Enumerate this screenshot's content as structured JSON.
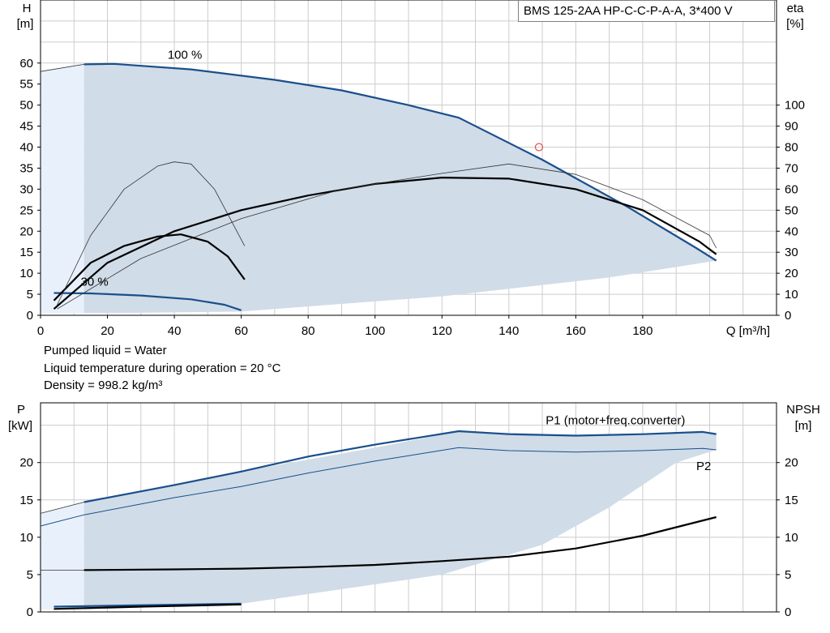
{
  "title": "BMS 125-2AA HP-C-C-P-A-A, 3*400 V",
  "info": [
    "Pumped liquid = Water",
    "Liquid temperature during operation = 20 °C",
    "Density = 998.2 kg/m³"
  ],
  "colors": {
    "area": "#d0dce8",
    "area_light": "#e8f1fb",
    "blue": "#1a4f8b",
    "black": "#000000",
    "grid": "#cccccc",
    "marker": "#e03030"
  },
  "chart_data": [
    {
      "type": "line",
      "name": "head-efficiency",
      "xlabel": "Q [m³/h]",
      "ylabel": "H\n[m]",
      "y2label": "eta\n[%]",
      "xlim": [
        0,
        220
      ],
      "ylim": [
        0,
        75
      ],
      "y2lim": [
        0,
        150
      ],
      "x_ticks": [
        0,
        20,
        40,
        60,
        80,
        100,
        120,
        140,
        160,
        180
      ],
      "y_ticks": [
        0,
        5,
        10,
        15,
        20,
        25,
        30,
        35,
        40,
        45,
        50,
        55,
        60
      ],
      "y2_ticks": [
        0,
        10,
        20,
        30,
        40,
        50,
        60,
        70,
        80,
        90,
        100
      ],
      "grid": true,
      "annotations": [
        {
          "text": "100 %",
          "x": 38,
          "y": 61
        },
        {
          "text": "30 %",
          "x": 12,
          "y": 7
        }
      ],
      "duty_point": {
        "x": 149,
        "y": 40
      },
      "operating_range": [
        [
          13,
          60
        ],
        [
          22,
          59.8
        ],
        [
          45,
          58.5
        ],
        [
          70,
          56
        ],
        [
          90,
          53.5
        ],
        [
          110,
          50
        ],
        [
          125,
          47
        ],
        [
          150,
          37
        ],
        [
          175,
          26
        ],
        [
          196,
          16
        ],
        [
          202,
          13
        ],
        [
          170,
          9
        ],
        [
          120,
          4.5
        ],
        [
          60,
          0.9
        ],
        [
          50,
          0.8
        ],
        [
          30,
          0.6
        ],
        [
          13,
          0.5
        ]
      ],
      "extension_region": [
        [
          0,
          58
        ],
        [
          13,
          60
        ],
        [
          13,
          0.5
        ],
        [
          0,
          0.5
        ]
      ],
      "series": [
        {
          "name": "H 100%",
          "axis": "left",
          "style": "blue-thick",
          "x": [
            13,
            22,
            45,
            70,
            90,
            110,
            125,
            150,
            175,
            196,
            202
          ],
          "y": [
            59.7,
            59.8,
            58.5,
            56,
            53.5,
            50,
            47,
            37,
            26,
            16,
            13
          ]
        },
        {
          "name": "H 100% ext",
          "axis": "left",
          "style": "thin",
          "x": [
            0,
            13
          ],
          "y": [
            58,
            59.7
          ]
        },
        {
          "name": "H 30%",
          "axis": "left",
          "style": "blue-thick",
          "x": [
            4,
            15,
            30,
            45,
            55,
            60
          ],
          "y": [
            5.3,
            5.2,
            4.7,
            3.8,
            2.5,
            1.2
          ]
        },
        {
          "name": "eta 100%",
          "axis": "right",
          "style": "black-thick",
          "x": [
            4,
            20,
            40,
            60,
            80,
            100,
            120,
            140,
            160,
            180,
            197,
            202
          ],
          "y": [
            3,
            25,
            40,
            50,
            57,
            62.5,
            65.5,
            65,
            60,
            50,
            35,
            29
          ]
        },
        {
          "name": "eta 100% ext",
          "axis": "right",
          "style": "thin",
          "x": [
            5,
            30,
            60,
            90,
            120,
            140,
            160,
            180,
            200,
            202
          ],
          "y": [
            3,
            27,
            46,
            60,
            67.5,
            72,
            67,
            55,
            38,
            32
          ]
        },
        {
          "name": "eta 30%",
          "axis": "right",
          "style": "black-thick",
          "x": [
            4,
            15,
            25,
            35,
            42,
            50,
            56,
            61
          ],
          "y": [
            7,
            25,
            33,
            37.5,
            38.5,
            35,
            28,
            17
          ]
        },
        {
          "name": "eta 30% ext",
          "axis": "right",
          "style": "thin",
          "x": [
            5,
            15,
            25,
            35,
            40,
            45,
            52,
            57,
            61
          ],
          "y": [
            5,
            38,
            60,
            71,
            73,
            72,
            60,
            45,
            33
          ]
        }
      ]
    },
    {
      "type": "line",
      "name": "power-npsh",
      "ylabel": "P\n[kW]",
      "y2label": "NPSH\n[m]",
      "xlim": [
        0,
        220
      ],
      "ylim": [
        0,
        28
      ],
      "y2lim": [
        0,
        28
      ],
      "y_ticks": [
        0,
        5,
        10,
        15,
        20
      ],
      "y2_ticks": [
        0,
        5,
        10,
        15,
        20
      ],
      "grid": true,
      "annotations": [
        {
          "text": "P1 (motor+freq.converter)",
          "x": 151,
          "y": 25.1
        },
        {
          "text": "P2",
          "x": 196,
          "y": 19
        }
      ],
      "operating_range": [
        [
          13,
          14.7
        ],
        [
          60,
          18.8
        ],
        [
          100,
          22
        ],
        [
          125,
          24.2
        ],
        [
          160,
          23.7
        ],
        [
          200,
          24.1
        ],
        [
          202,
          24
        ],
        [
          202,
          21.7
        ],
        [
          190,
          20
        ],
        [
          170,
          14
        ],
        [
          150,
          9
        ],
        [
          120,
          5
        ],
        [
          60,
          1.1
        ],
        [
          13,
          0.3
        ]
      ],
      "extension_region": [
        [
          0,
          13.2
        ],
        [
          13,
          14.7
        ],
        [
          13,
          0.3
        ],
        [
          0,
          0.3
        ]
      ],
      "series": [
        {
          "name": "P1",
          "axis": "left",
          "style": "blue-thick",
          "x": [
            13,
            40,
            60,
            80,
            100,
            125,
            140,
            160,
            180,
            198,
            202
          ],
          "y": [
            14.7,
            17,
            18.8,
            20.8,
            22.4,
            24.2,
            23.8,
            23.6,
            23.8,
            24.1,
            23.8
          ]
        },
        {
          "name": "P1 ext",
          "axis": "left",
          "style": "thin",
          "x": [
            0,
            13
          ],
          "y": [
            13.2,
            14.7
          ]
        },
        {
          "name": "P2",
          "axis": "left",
          "style": "blue-thin",
          "x": [
            0,
            13,
            40,
            60,
            80,
            100,
            125,
            140,
            160,
            180,
            198,
            202
          ],
          "y": [
            11.5,
            13,
            15.3,
            16.8,
            18.6,
            20.2,
            22,
            21.6,
            21.4,
            21.6,
            21.9,
            21.7
          ]
        },
        {
          "name": "P1 30%",
          "axis": "left",
          "style": "blue-thick",
          "x": [
            4,
            30,
            60
          ],
          "y": [
            0.7,
            0.9,
            1.1
          ]
        },
        {
          "name": "P2 30%",
          "axis": "left",
          "style": "black-thick",
          "x": [
            4,
            30,
            60
          ],
          "y": [
            0.4,
            0.7,
            1
          ]
        },
        {
          "name": "NPSH",
          "axis": "right",
          "style": "black-thick",
          "x": [
            13,
            40,
            60,
            80,
            100,
            120,
            140,
            160,
            180,
            202
          ],
          "y": [
            5.6,
            5.7,
            5.8,
            6,
            6.3,
            6.8,
            7.4,
            8.5,
            10.2,
            12.7
          ]
        },
        {
          "name": "NPSH ext",
          "axis": "right",
          "style": "thin",
          "x": [
            0,
            13
          ],
          "y": [
            5.6,
            5.6
          ]
        }
      ]
    }
  ]
}
